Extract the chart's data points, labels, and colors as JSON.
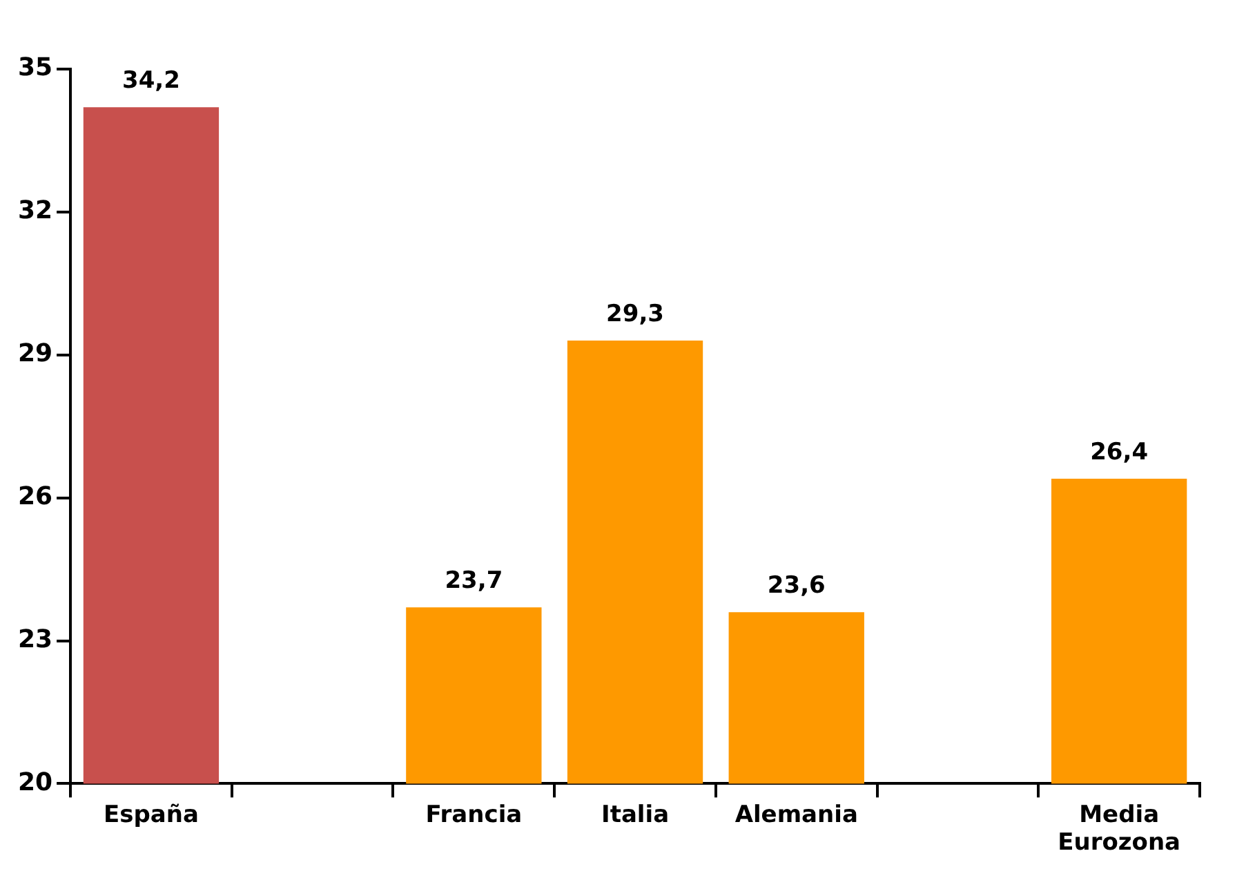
{
  "chart_data": {
    "type": "bar",
    "categories": [
      "España",
      null,
      "Francia",
      "Italia",
      "Alemania",
      null,
      "Media Eurozona"
    ],
    "values": [
      34.2,
      null,
      23.7,
      29.3,
      23.6,
      null,
      26.4
    ],
    "colors": [
      "#c8504d",
      null,
      "#fe9900",
      "#fe9900",
      "#fe9900",
      null,
      "#fe9900"
    ],
    "value_labels": [
      "34,2",
      null,
      "23,7",
      "29,3",
      "23,6",
      null,
      "26,4"
    ],
    "ylim": [
      20,
      35
    ],
    "yticks": [
      20,
      23,
      26,
      29,
      32,
      35
    ],
    "grid": false,
    "legend": false
  }
}
